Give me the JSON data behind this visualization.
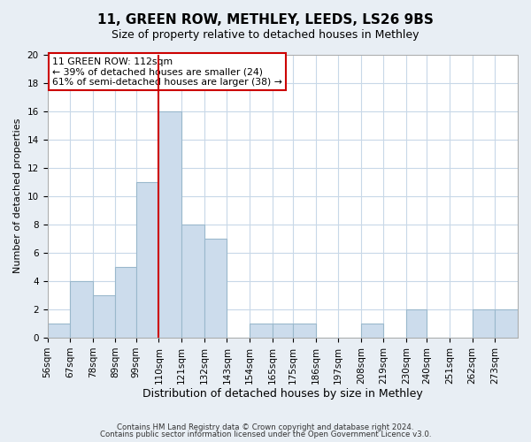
{
  "title": "11, GREEN ROW, METHLEY, LEEDS, LS26 9BS",
  "subtitle": "Size of property relative to detached houses in Methley",
  "xlabel": "Distribution of detached houses by size in Methley",
  "ylabel": "Number of detached properties",
  "bin_labels": [
    "56sqm",
    "67sqm",
    "78sqm",
    "89sqm",
    "99sqm",
    "110sqm",
    "121sqm",
    "132sqm",
    "143sqm",
    "154sqm",
    "165sqm",
    "175sqm",
    "186sqm",
    "197sqm",
    "208sqm",
    "219sqm",
    "230sqm",
    "240sqm",
    "251sqm",
    "262sqm",
    "273sqm"
  ],
  "bin_edges": [
    56,
    67,
    78,
    89,
    99,
    110,
    121,
    132,
    143,
    154,
    165,
    175,
    186,
    197,
    208,
    219,
    230,
    240,
    251,
    262,
    273
  ],
  "bin_widths": [
    11,
    11,
    11,
    10,
    11,
    11,
    11,
    11,
    11,
    11,
    10,
    11,
    11,
    11,
    11,
    11,
    10,
    11,
    11,
    11,
    11
  ],
  "counts": [
    1,
    4,
    3,
    5,
    11,
    16,
    8,
    7,
    0,
    1,
    1,
    1,
    0,
    0,
    1,
    0,
    2,
    0,
    0,
    2,
    2
  ],
  "bar_color": "#ccdcec",
  "bar_edge_color": "#9ab8cc",
  "vline_x": 110,
  "vline_color": "#cc0000",
  "annotation_text": "11 GREEN ROW: 112sqm\n← 39% of detached houses are smaller (24)\n61% of semi-detached houses are larger (38) →",
  "annotation_box_color": "white",
  "annotation_box_edge": "#cc0000",
  "ylim": [
    0,
    20
  ],
  "yticks": [
    0,
    2,
    4,
    6,
    8,
    10,
    12,
    14,
    16,
    18,
    20
  ],
  "footer_line1": "Contains HM Land Registry data © Crown copyright and database right 2024.",
  "footer_line2": "Contains public sector information licensed under the Open Government Licence v3.0.",
  "background_color": "#e8eef4",
  "plot_bg_color": "white",
  "grid_color": "#c8d8e8",
  "title_fontsize": 11,
  "subtitle_fontsize": 9,
  "tick_fontsize": 7.5,
  "ylabel_fontsize": 8,
  "xlabel_fontsize": 9
}
